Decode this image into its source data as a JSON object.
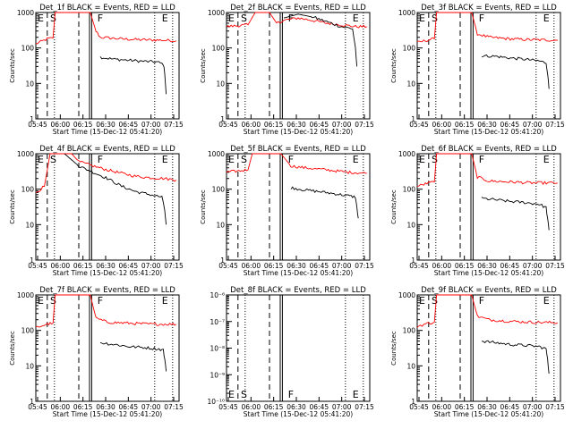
{
  "chart_data": [
    {
      "type": "line",
      "title": "Det_1f BLACK = Events, RED = LLD",
      "ylabel": "Counts/sec",
      "xlabel": "Start Time (15-Dec-12 05:41:20)",
      "yscale": "log",
      "ylim": [
        1,
        1000
      ],
      "x_ticks": [
        "05:45",
        "06:00",
        "06:15",
        "06:30",
        "06:45",
        "07:00",
        "07:15"
      ],
      "y_ticks": [
        "1",
        "10",
        "100",
        "1000"
      ],
      "markers": [
        {
          "label": "E",
          "t": 0.02
        },
        {
          "label": "S",
          "t": 0.1
        },
        {
          "label": "F",
          "t": 0.43
        },
        {
          "label": "E",
          "t": 0.9
        }
      ],
      "series": [
        {
          "color": "#ff0000",
          "points": [
            [
              0.0,
              130
            ],
            [
              0.08,
              180
            ],
            [
              0.12,
              190
            ],
            [
              0.135,
              1000
            ],
            [
              0.38,
              1000
            ],
            [
              0.42,
              300
            ],
            [
              0.45,
              200
            ],
            [
              0.6,
              180
            ],
            [
              0.75,
              170
            ],
            [
              0.9,
              165
            ],
            [
              0.98,
              160
            ]
          ]
        },
        {
          "color": "#000000",
          "points": [
            [
              0.45,
              55
            ],
            [
              0.55,
              48
            ],
            [
              0.65,
              45
            ],
            [
              0.75,
              42
            ],
            [
              0.85,
              40
            ],
            [
              0.89,
              35
            ],
            [
              0.9,
              20
            ],
            [
              0.91,
              5
            ]
          ]
        }
      ]
    },
    {
      "type": "line",
      "title": "Det_2f BLACK = Events, RED = LLD",
      "ylabel": "Counts/sec",
      "xlabel": "Start Time (15-Dec-12 05:41:20)",
      "yscale": "log",
      "ylim": [
        1,
        1000
      ],
      "x_ticks": [
        "05:45",
        "06:00",
        "06:15",
        "06:30",
        "06:45",
        "07:00",
        "07:15"
      ],
      "y_ticks": [
        "1",
        "10",
        "100",
        "1000"
      ],
      "markers": [
        {
          "label": "E",
          "t": 0.02
        },
        {
          "label": "S",
          "t": 0.16
        },
        {
          "label": "F",
          "t": 0.43
        },
        {
          "label": "E",
          "t": 0.9
        }
      ],
      "series": [
        {
          "color": "#ff0000",
          "points": [
            [
              0.0,
              400
            ],
            [
              0.15,
              450
            ],
            [
              0.2,
              1000
            ],
            [
              0.3,
              1000
            ],
            [
              0.35,
              500
            ],
            [
              0.4,
              600
            ],
            [
              0.5,
              700
            ],
            [
              0.6,
              600
            ],
            [
              0.7,
              500
            ],
            [
              0.8,
              450
            ],
            [
              0.9,
              400
            ],
            [
              0.98,
              400
            ]
          ]
        },
        {
          "color": "#000000",
          "points": [
            [
              0.4,
              700
            ],
            [
              0.5,
              900
            ],
            [
              0.6,
              750
            ],
            [
              0.7,
              550
            ],
            [
              0.8,
              400
            ],
            [
              0.88,
              350
            ],
            [
              0.9,
              100
            ],
            [
              0.91,
              30
            ]
          ]
        }
      ]
    },
    {
      "type": "line",
      "title": "Det_3f BLACK = Events, RED = LLD",
      "ylabel": "Counts/sec",
      "xlabel": "Start Time (15-Dec-12 05:41:20)",
      "yscale": "log",
      "ylim": [
        1,
        1000
      ],
      "x_ticks": [
        "05:45",
        "06:00",
        "06:15",
        "06:30",
        "06:45",
        "07:00",
        "07:15"
      ],
      "y_ticks": [
        "1",
        "10",
        "100",
        "1000"
      ],
      "markers": [
        {
          "label": "E",
          "t": 0.02
        },
        {
          "label": "S",
          "t": 0.1
        },
        {
          "label": "F",
          "t": 0.43
        },
        {
          "label": "E",
          "t": 0.9
        }
      ],
      "series": [
        {
          "color": "#ff0000",
          "points": [
            [
              0.0,
              140
            ],
            [
              0.08,
              170
            ],
            [
              0.12,
              180
            ],
            [
              0.135,
              1000
            ],
            [
              0.38,
              1000
            ],
            [
              0.42,
              250
            ],
            [
              0.5,
              200
            ],
            [
              0.65,
              180
            ],
            [
              0.8,
              170
            ],
            [
              0.98,
              165
            ]
          ]
        },
        {
          "color": "#000000",
          "points": [
            [
              0.45,
              60
            ],
            [
              0.55,
              58
            ],
            [
              0.65,
              52
            ],
            [
              0.75,
              48
            ],
            [
              0.85,
              43
            ],
            [
              0.9,
              38
            ],
            [
              0.91,
              20
            ],
            [
              0.92,
              7
            ]
          ]
        }
      ]
    },
    {
      "type": "line",
      "title": "Det_4f BLACK = Events, RED = LLD",
      "ylabel": "Counts/sec",
      "xlabel": "Start Time (15-Dec-12 05:41:20)",
      "yscale": "log",
      "ylim": [
        1,
        1000
      ],
      "x_ticks": [
        "05:45",
        "06:00",
        "06:15",
        "06:30",
        "06:45",
        "07:00",
        "07:15"
      ],
      "y_ticks": [
        "1",
        "10",
        "100",
        "1000"
      ],
      "markers": [
        {
          "label": "E",
          "t": 0.02
        },
        {
          "label": "S",
          "t": 0.1
        },
        {
          "label": "F",
          "t": 0.43
        },
        {
          "label": "E",
          "t": 0.9
        }
      ],
      "series": [
        {
          "color": "#ff0000",
          "points": [
            [
              0.0,
              80
            ],
            [
              0.06,
              120
            ],
            [
              0.1,
              1000
            ],
            [
              0.25,
              1000
            ],
            [
              0.3,
              600
            ],
            [
              0.4,
              450
            ],
            [
              0.5,
              350
            ],
            [
              0.6,
              280
            ],
            [
              0.7,
              230
            ],
            [
              0.8,
              210
            ],
            [
              0.9,
              200
            ],
            [
              0.98,
              180
            ]
          ]
        },
        {
          "color": "#000000",
          "points": [
            [
              0.2,
              1000
            ],
            [
              0.3,
              450
            ],
            [
              0.4,
              300
            ],
            [
              0.5,
              200
            ],
            [
              0.6,
              120
            ],
            [
              0.7,
              85
            ],
            [
              0.8,
              70
            ],
            [
              0.88,
              60
            ],
            [
              0.9,
              25
            ],
            [
              0.91,
              10
            ]
          ]
        }
      ]
    },
    {
      "type": "line",
      "title": "Det_5f BLACK = Events, RED = LLD",
      "ylabel": "Counts/sec",
      "xlabel": "Start Time (15-Dec-12 05:41:20)",
      "yscale": "log",
      "ylim": [
        1,
        1000
      ],
      "x_ticks": [
        "05:45",
        "06:00",
        "06:15",
        "06:30",
        "06:45",
        "07:00",
        "07:15"
      ],
      "y_ticks": [
        "1",
        "10",
        "100",
        "1000"
      ],
      "markers": [
        {
          "label": "E",
          "t": 0.02
        },
        {
          "label": "S",
          "t": 0.16
        },
        {
          "label": "F",
          "t": 0.43
        },
        {
          "label": "E",
          "t": 0.9
        }
      ],
      "series": [
        {
          "color": "#ff0000",
          "points": [
            [
              0.0,
              300
            ],
            [
              0.15,
              350
            ],
            [
              0.18,
              1000
            ],
            [
              0.38,
              1000
            ],
            [
              0.45,
              450
            ],
            [
              0.55,
              400
            ],
            [
              0.7,
              350
            ],
            [
              0.85,
              300
            ],
            [
              0.98,
              280
            ]
          ]
        },
        {
          "color": "#000000",
          "points": [
            [
              0.45,
              110
            ],
            [
              0.55,
              95
            ],
            [
              0.65,
              85
            ],
            [
              0.75,
              75
            ],
            [
              0.85,
              65
            ],
            [
              0.9,
              60
            ],
            [
              0.91,
              30
            ],
            [
              0.92,
              15
            ]
          ]
        }
      ]
    },
    {
      "type": "line",
      "title": "Det_6f BLACK = Events, RED = LLD",
      "ylabel": "Counts/sec",
      "xlabel": "Start Time (15-Dec-12 05:41:20)",
      "yscale": "log",
      "ylim": [
        1,
        1000
      ],
      "x_ticks": [
        "05:45",
        "06:00",
        "06:15",
        "06:30",
        "06:45",
        "07:00",
        "07:15"
      ],
      "y_ticks": [
        "1",
        "10",
        "100",
        "1000"
      ],
      "markers": [
        {
          "label": "E",
          "t": 0.02
        },
        {
          "label": "S",
          "t": 0.1
        },
        {
          "label": "F",
          "t": 0.43
        },
        {
          "label": "E",
          "t": 0.9
        }
      ],
      "series": [
        {
          "color": "#ff0000",
          "points": [
            [
              0.0,
              120
            ],
            [
              0.08,
              150
            ],
            [
              0.12,
              160
            ],
            [
              0.135,
              1000
            ],
            [
              0.38,
              1000
            ],
            [
              0.42,
              220
            ],
            [
              0.5,
              170
            ],
            [
              0.65,
              160
            ],
            [
              0.8,
              150
            ],
            [
              0.98,
              150
            ]
          ]
        },
        {
          "color": "#000000",
          "points": [
            [
              0.45,
              55
            ],
            [
              0.55,
              50
            ],
            [
              0.65,
              45
            ],
            [
              0.75,
              42
            ],
            [
              0.85,
              38
            ],
            [
              0.9,
              30
            ],
            [
              0.91,
              15
            ],
            [
              0.92,
              7
            ]
          ]
        }
      ]
    },
    {
      "type": "line",
      "title": "Det_7f BLACK = Events, RED = LLD",
      "ylabel": "Counts/sec",
      "xlabel": "Start Time (15-Dec-12 05:41:20)",
      "yscale": "log",
      "ylim": [
        1,
        1000
      ],
      "x_ticks": [
        "05:45",
        "06:00",
        "06:15",
        "06:30",
        "06:45",
        "07:00",
        "07:15"
      ],
      "y_ticks": [
        "1",
        "10",
        "100",
        "1000"
      ],
      "markers": [
        {
          "label": "E",
          "t": 0.02
        },
        {
          "label": "S",
          "t": 0.1
        },
        {
          "label": "F",
          "t": 0.43
        },
        {
          "label": "E",
          "t": 0.9
        }
      ],
      "series": [
        {
          "color": "#ff0000",
          "points": [
            [
              0.0,
              120
            ],
            [
              0.08,
              150
            ],
            [
              0.12,
              160
            ],
            [
              0.135,
              1000
            ],
            [
              0.38,
              1000
            ],
            [
              0.42,
              220
            ],
            [
              0.5,
              170
            ],
            [
              0.65,
              160
            ],
            [
              0.8,
              150
            ],
            [
              0.98,
              150
            ]
          ]
        },
        {
          "color": "#000000",
          "points": [
            [
              0.45,
              45
            ],
            [
              0.55,
              40
            ],
            [
              0.65,
              35
            ],
            [
              0.75,
              33
            ],
            [
              0.85,
              30
            ],
            [
              0.89,
              28
            ],
            [
              0.9,
              15
            ],
            [
              0.91,
              7
            ]
          ]
        }
      ]
    },
    {
      "type": "line",
      "title": "Det_8f BLACK = Events, RED = LLD",
      "ylabel": "",
      "xlabel": "Start Time (15-Dec-12 05:41:20)",
      "yscale": "log",
      "ylim": [
        1e-10,
        1e-06
      ],
      "x_ticks": [
        "05:45",
        "06:00",
        "06:15",
        "06:30",
        "06:45",
        "07:00",
        "07:15"
      ],
      "y_ticks": [
        "10⁻¹⁰",
        "10⁻⁹",
        "10⁻⁸",
        "10⁻⁷",
        "10⁻⁶"
      ],
      "markers": [
        {
          "label": "E",
          "t": 0.02
        },
        {
          "label": "S",
          "t": 0.1
        },
        {
          "label": "F",
          "t": 0.43
        },
        {
          "label": "E",
          "t": 0.9
        }
      ],
      "series": []
    },
    {
      "type": "line",
      "title": "Det_9f BLACK = Events, RED = LLD",
      "ylabel": "Counts/sec",
      "xlabel": "Start Time (15-Dec-12 05:41:20)",
      "yscale": "log",
      "ylim": [
        1,
        1000
      ],
      "x_ticks": [
        "05:45",
        "06:00",
        "06:15",
        "06:30",
        "06:45",
        "07:00",
        "07:15"
      ],
      "y_ticks": [
        "1",
        "10",
        "100",
        "1000"
      ],
      "markers": [
        {
          "label": "E",
          "t": 0.02
        },
        {
          "label": "S",
          "t": 0.1
        },
        {
          "label": "F",
          "t": 0.43
        },
        {
          "label": "E",
          "t": 0.9
        }
      ],
      "series": [
        {
          "color": "#ff0000",
          "points": [
            [
              0.0,
              130
            ],
            [
              0.08,
              160
            ],
            [
              0.12,
              170
            ],
            [
              0.135,
              1000
            ],
            [
              0.38,
              1000
            ],
            [
              0.42,
              250
            ],
            [
              0.5,
              200
            ],
            [
              0.65,
              180
            ],
            [
              0.8,
              170
            ],
            [
              0.98,
              165
            ]
          ]
        },
        {
          "color": "#000000",
          "points": [
            [
              0.45,
              50
            ],
            [
              0.55,
              45
            ],
            [
              0.65,
              40
            ],
            [
              0.75,
              38
            ],
            [
              0.85,
              35
            ],
            [
              0.9,
              30
            ],
            [
              0.91,
              15
            ],
            [
              0.92,
              6
            ]
          ]
        }
      ]
    }
  ]
}
